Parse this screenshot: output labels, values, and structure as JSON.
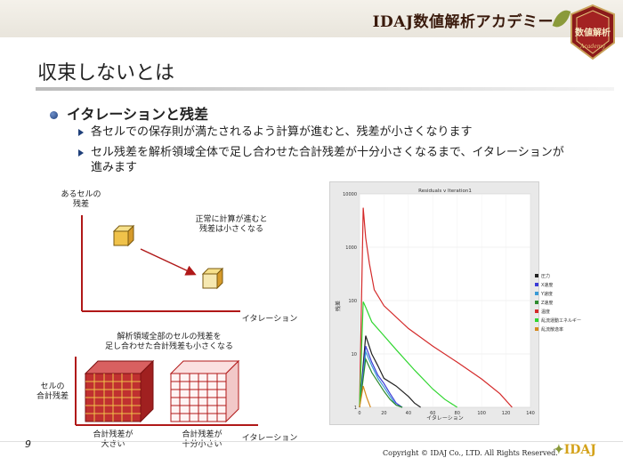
{
  "header": {
    "brand": "IDAJ数値解析アカデミー",
    "badge_text": "数値解析",
    "badge_sub": "Academy"
  },
  "slide": {
    "title": "収束しないとは",
    "bullet": "イタレーションと残差",
    "subs": [
      "各セルでの保存則が満たされるよう計算が進むと、残差が小さくなります",
      "セル残差を解析領域全体で足し合わせた合計残差が十分小さくなるまで、イタレーションが進みます"
    ]
  },
  "diagram1": {
    "ylabel_l1": "あるセルの",
    "ylabel_l2": "残差",
    "note_l1": "正常に計算が進むと",
    "note_l2": "残差は小さくなる",
    "xlabel": "イタレーション"
  },
  "diagram2": {
    "top_l1": "解析領域全部のセルの残差を",
    "top_l2": "足し合わせた合計残差も小さくなる",
    "ylabel_l1": "セルの",
    "ylabel_l2": "合計残差",
    "big_l1": "合計残差が",
    "big_l2": "大きい",
    "small_l1": "合計残差が",
    "small_l2": "十分小さい",
    "xlabel": "イタレーション"
  },
  "chart_data": {
    "type": "line",
    "title": "Residuals v Iteration1",
    "xlabel": "イタレーション",
    "ylabel": "残差",
    "xlim": [
      0,
      140
    ],
    "ylim": [
      1,
      10000
    ],
    "yscale": "log",
    "xticks": [
      "0",
      "20",
      "40",
      "60",
      "80",
      "100",
      "120",
      "140"
    ],
    "yticks": [
      "1",
      "10",
      "100",
      "1000",
      "10000"
    ],
    "legend_position": "right",
    "series": [
      {
        "name": "圧力",
        "color": "#222222",
        "x": [
          0,
          5,
          10,
          15,
          20,
          30,
          40,
          45,
          50
        ],
        "y": [
          1,
          22,
          10,
          6,
          3.5,
          2.5,
          1.6,
          1.2,
          1
        ]
      },
      {
        "name": "X速度",
        "color": "#3b3bd6",
        "x": [
          0,
          5,
          10,
          15,
          20,
          25,
          30,
          35
        ],
        "y": [
          1,
          14,
          7,
          4,
          2.8,
          1.8,
          1.2,
          1
        ]
      },
      {
        "name": "Y速度",
        "color": "#3a9ad6",
        "x": [
          0,
          5,
          10,
          15,
          20,
          25,
          30,
          35
        ],
        "y": [
          1,
          11,
          6,
          3.5,
          2.4,
          1.6,
          1.1,
          1
        ]
      },
      {
        "name": "Z速度",
        "color": "#2e8b2e",
        "x": [
          0,
          5,
          10,
          15,
          20,
          25,
          30,
          35
        ],
        "y": [
          1,
          8,
          4.5,
          3,
          2,
          1.4,
          1.1,
          1
        ]
      },
      {
        "name": "温度",
        "color": "#d42a2a",
        "x": [
          0,
          3,
          5,
          8,
          12,
          20,
          40,
          60,
          80,
          100,
          115,
          125
        ],
        "y": [
          1,
          5500,
          1500,
          500,
          160,
          80,
          30,
          14,
          7,
          3.4,
          1.8,
          1
        ]
      },
      {
        "name": "乱流運動エネルギー",
        "color": "#30d630",
        "x": [
          0,
          3,
          5,
          10,
          20,
          30,
          45,
          60,
          70,
          80
        ],
        "y": [
          1,
          95,
          75,
          40,
          22,
          12,
          5,
          2.2,
          1.4,
          1
        ]
      },
      {
        "name": "乱流散逸率",
        "color": "#d68a1e",
        "x": [
          0,
          3,
          6,
          9
        ],
        "y": [
          1,
          2.5,
          1.5,
          1
        ]
      }
    ]
  },
  "footer": {
    "page": "9",
    "copyright": "Copyright © IDAJ Co., LTD. All Rights Reserved.",
    "logo": "IDAJ"
  }
}
